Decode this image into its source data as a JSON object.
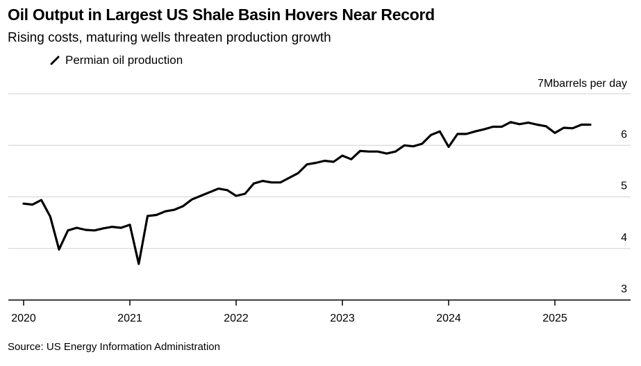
{
  "chart_data": {
    "type": "line",
    "title": "Oil Output in Largest US Shale Basin Hovers Near Record",
    "subtitle": "Rising costs, maturing wells threaten production growth",
    "ylabel": "barrels per day",
    "y_top_label": "7M",
    "ylim": [
      3,
      7
    ],
    "y_ticks": [
      3,
      4,
      5,
      6
    ],
    "x_ticks": [
      "2020",
      "2021",
      "2022",
      "2023",
      "2024",
      "2025"
    ],
    "grid": true,
    "legend_position": "top-left",
    "series": [
      {
        "name": "Permian oil production",
        "color": "#000000",
        "x": [
          "2020-01",
          "2020-02",
          "2020-03",
          "2020-04",
          "2020-05",
          "2020-06",
          "2020-07",
          "2020-08",
          "2020-09",
          "2020-10",
          "2020-11",
          "2020-12",
          "2021-01",
          "2021-02",
          "2021-03",
          "2021-04",
          "2021-05",
          "2021-06",
          "2021-07",
          "2021-08",
          "2021-09",
          "2021-10",
          "2021-11",
          "2021-12",
          "2022-01",
          "2022-02",
          "2022-03",
          "2022-04",
          "2022-05",
          "2022-06",
          "2022-07",
          "2022-08",
          "2022-09",
          "2022-10",
          "2022-11",
          "2022-12",
          "2023-01",
          "2023-02",
          "2023-03",
          "2023-04",
          "2023-05",
          "2023-06",
          "2023-07",
          "2023-08",
          "2023-09",
          "2023-10",
          "2023-11",
          "2023-12",
          "2024-01",
          "2024-02",
          "2024-03",
          "2024-04",
          "2024-05",
          "2024-06",
          "2024-07",
          "2024-08",
          "2024-09",
          "2024-10",
          "2024-11",
          "2024-12",
          "2025-01",
          "2025-02",
          "2025-03",
          "2025-04",
          "2025-05"
        ],
        "values": [
          4.87,
          4.85,
          4.94,
          4.62,
          3.98,
          4.35,
          4.4,
          4.36,
          4.35,
          4.39,
          4.42,
          4.4,
          4.46,
          3.7,
          4.63,
          4.65,
          4.72,
          4.75,
          4.82,
          4.95,
          5.02,
          5.09,
          5.16,
          5.13,
          5.02,
          5.06,
          5.26,
          5.31,
          5.28,
          5.28,
          5.37,
          5.46,
          5.63,
          5.66,
          5.7,
          5.68,
          5.8,
          5.73,
          5.89,
          5.88,
          5.88,
          5.84,
          5.88,
          6.0,
          5.98,
          6.03,
          6.2,
          6.27,
          5.97,
          6.22,
          6.22,
          6.27,
          6.31,
          6.36,
          6.36,
          6.45,
          6.41,
          6.44,
          6.4,
          6.37,
          6.24,
          6.34,
          6.33,
          6.4,
          6.4
        ]
      }
    ]
  },
  "legend": {
    "label": "Permian oil production"
  },
  "source": "Source: US Energy Information Administration"
}
